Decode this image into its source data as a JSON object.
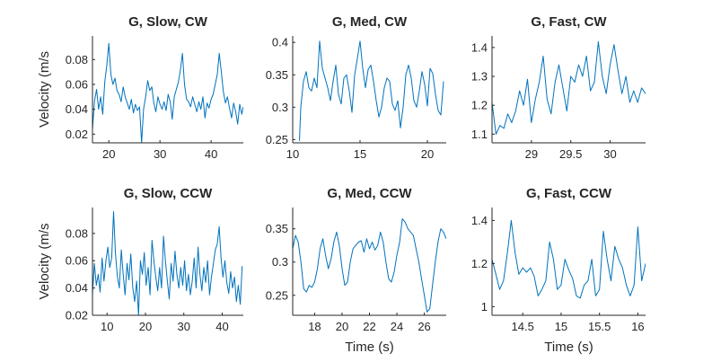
{
  "chart_data": [
    {
      "type": "line",
      "title": "G, Slow, CW",
      "xlabel": "",
      "ylabel": "Velocity (m/s",
      "xlim": [
        16.8,
        46.3
      ],
      "ylim": [
        0.013,
        0.099
      ],
      "xticks": [
        20,
        30,
        40
      ],
      "yticks": [
        0.02,
        0.04,
        0.06,
        0.08
      ],
      "x_tick_labels": [
        "20",
        "30",
        "40"
      ],
      "y_tick_labels": [
        "0.02",
        "0.04",
        "0.06",
        "0.08"
      ],
      "grid": false,
      "series": [
        {
          "color": "#0072BD",
          "x": [
            16.8,
            17.2,
            17.6,
            18.0,
            18.4,
            18.8,
            19.2,
            19.6,
            20.0,
            20.4,
            20.8,
            21.2,
            21.6,
            22.0,
            22.4,
            22.8,
            23.2,
            23.6,
            24.0,
            24.4,
            24.8,
            25.2,
            25.6,
            26.0,
            26.4,
            26.8,
            27.2,
            27.6,
            28.0,
            28.4,
            28.8,
            29.2,
            29.6,
            30.0,
            30.4,
            30.8,
            31.2,
            31.6,
            32.0,
            32.4,
            32.8,
            33.2,
            33.6,
            34.0,
            34.4,
            34.8,
            35.2,
            35.6,
            36.0,
            36.4,
            36.8,
            37.2,
            37.6,
            38.0,
            38.4,
            38.8,
            39.2,
            39.6,
            40.0,
            40.4,
            40.8,
            41.2,
            41.6,
            42.0,
            42.4,
            42.8,
            43.2,
            43.6,
            44.0,
            44.4,
            44.8,
            45.2,
            45.6,
            46.0,
            46.3
          ],
          "y": [
            0.024,
            0.047,
            0.056,
            0.04,
            0.05,
            0.036,
            0.062,
            0.075,
            0.093,
            0.068,
            0.06,
            0.065,
            0.055,
            0.052,
            0.046,
            0.058,
            0.05,
            0.045,
            0.04,
            0.048,
            0.037,
            0.044,
            0.039,
            0.042,
            0.013,
            0.04,
            0.05,
            0.063,
            0.055,
            0.058,
            0.045,
            0.038,
            0.05,
            0.044,
            0.04,
            0.046,
            0.039,
            0.052,
            0.046,
            0.032,
            0.05,
            0.056,
            0.062,
            0.072,
            0.085,
            0.06,
            0.048,
            0.046,
            0.042,
            0.05,
            0.044,
            0.038,
            0.046,
            0.04,
            0.05,
            0.033,
            0.045,
            0.041,
            0.048,
            0.052,
            0.06,
            0.068,
            0.085,
            0.07,
            0.054,
            0.045,
            0.05,
            0.041,
            0.033,
            0.045,
            0.038,
            0.028,
            0.044,
            0.036,
            0.042
          ]
        }
      ]
    },
    {
      "type": "line",
      "title": "G, Med, CW",
      "xlabel": "",
      "ylabel": "",
      "xlim": [
        10,
        21.4
      ],
      "ylim": [
        0.245,
        0.41
      ],
      "xticks": [
        10,
        15,
        20
      ],
      "yticks": [
        0.25,
        0.3,
        0.35,
        0.4
      ],
      "x_tick_labels": [
        "10",
        "15",
        "20"
      ],
      "y_tick_labels": [
        "0.25",
        "0.3",
        "0.35",
        "0.4"
      ],
      "grid": false,
      "series": [
        {
          "color": "#0072BD",
          "x": [
            10.5,
            10.6,
            10.8,
            11.0,
            11.2,
            11.4,
            11.6,
            11.8,
            12.0,
            12.2,
            12.4,
            12.6,
            12.8,
            13.0,
            13.2,
            13.4,
            13.6,
            13.8,
            14.0,
            14.2,
            14.4,
            14.6,
            14.8,
            15.0,
            15.2,
            15.4,
            15.6,
            15.8,
            16.0,
            16.2,
            16.4,
            16.6,
            16.8,
            17.0,
            17.2,
            17.4,
            17.6,
            17.8,
            18.0,
            18.2,
            18.4,
            18.6,
            18.8,
            19.0,
            19.2,
            19.4,
            19.6,
            19.8,
            20.0,
            20.2,
            20.4,
            20.6,
            20.8,
            21.0,
            21.2
          ],
          "y": [
            0.248,
            0.3,
            0.34,
            0.355,
            0.33,
            0.325,
            0.345,
            0.33,
            0.402,
            0.36,
            0.345,
            0.33,
            0.31,
            0.34,
            0.365,
            0.32,
            0.305,
            0.345,
            0.35,
            0.325,
            0.292,
            0.35,
            0.375,
            0.402,
            0.36,
            0.33,
            0.358,
            0.365,
            0.34,
            0.31,
            0.285,
            0.3,
            0.33,
            0.345,
            0.34,
            0.305,
            0.295,
            0.31,
            0.268,
            0.3,
            0.35,
            0.365,
            0.345,
            0.31,
            0.3,
            0.325,
            0.355,
            0.335,
            0.302,
            0.36,
            0.352,
            0.32,
            0.295,
            0.288,
            0.34
          ]
        }
      ]
    },
    {
      "type": "line",
      "title": "G, Fast, CW",
      "xlabel": "",
      "ylabel": "",
      "xlim": [
        28.5,
        30.45
      ],
      "ylim": [
        1.07,
        1.44
      ],
      "xticks": [
        29,
        29.5,
        30
      ],
      "yticks": [
        1.1,
        1.2,
        1.3,
        1.4
      ],
      "x_tick_labels": [
        "29",
        "29.5",
        "30"
      ],
      "y_tick_labels": [
        "1.1",
        "1.2",
        "1.3",
        "1.4"
      ],
      "grid": false,
      "series": [
        {
          "color": "#0072BD",
          "x": [
            28.5,
            28.55,
            28.6,
            28.65,
            28.7,
            28.75,
            28.8,
            28.85,
            28.9,
            28.95,
            29.0,
            29.05,
            29.1,
            29.15,
            29.2,
            29.25,
            29.3,
            29.35,
            29.4,
            29.45,
            29.5,
            29.55,
            29.6,
            29.65,
            29.7,
            29.75,
            29.8,
            29.85,
            29.9,
            29.95,
            30.0,
            30.05,
            30.1,
            30.15,
            30.2,
            30.25,
            30.3,
            30.35,
            30.4,
            30.45
          ],
          "y": [
            1.21,
            1.1,
            1.13,
            1.12,
            1.17,
            1.14,
            1.18,
            1.25,
            1.2,
            1.29,
            1.14,
            1.22,
            1.28,
            1.37,
            1.22,
            1.17,
            1.28,
            1.34,
            1.26,
            1.18,
            1.3,
            1.28,
            1.34,
            1.3,
            1.37,
            1.25,
            1.28,
            1.42,
            1.3,
            1.24,
            1.34,
            1.41,
            1.32,
            1.24,
            1.3,
            1.21,
            1.25,
            1.21,
            1.26,
            1.24
          ]
        }
      ]
    },
    {
      "type": "line",
      "title": "G, Slow, CCW",
      "xlabel": "",
      "ylabel": "Velocity (m/s",
      "xlim": [
        6.2,
        45.5
      ],
      "ylim": [
        0.02,
        0.099
      ],
      "xticks": [
        10,
        20,
        30,
        40
      ],
      "yticks": [
        0.02,
        0.04,
        0.06,
        0.08
      ],
      "x_tick_labels": [
        "10",
        "20",
        "30",
        "40"
      ],
      "y_tick_labels": [
        "0.02",
        "0.04",
        "0.06",
        "0.08"
      ],
      "grid": false,
      "series": [
        {
          "color": "#0072BD",
          "x": [
            6.2,
            6.7,
            7.2,
            7.7,
            8.2,
            8.7,
            9.2,
            9.7,
            10.2,
            10.7,
            11.2,
            11.7,
            12.2,
            12.7,
            13.2,
            13.7,
            14.2,
            14.7,
            15.2,
            15.7,
            16.2,
            16.7,
            17.2,
            17.7,
            18.2,
            18.7,
            19.2,
            19.7,
            20.2,
            20.7,
            21.2,
            21.7,
            22.2,
            22.7,
            23.2,
            23.7,
            24.2,
            24.7,
            25.2,
            25.7,
            26.2,
            26.7,
            27.2,
            27.7,
            28.2,
            28.7,
            29.2,
            29.7,
            30.2,
            30.7,
            31.2,
            31.7,
            32.2,
            32.7,
            33.2,
            33.7,
            34.2,
            34.7,
            35.2,
            35.7,
            36.2,
            36.7,
            37.2,
            37.7,
            38.2,
            38.7,
            39.2,
            39.7,
            40.2,
            40.7,
            41.2,
            41.7,
            42.2,
            42.7,
            43.2,
            43.7,
            44.2,
            44.7,
            45.2
          ],
          "y": [
            0.035,
            0.058,
            0.042,
            0.05,
            0.037,
            0.062,
            0.045,
            0.06,
            0.07,
            0.055,
            0.062,
            0.096,
            0.065,
            0.048,
            0.04,
            0.068,
            0.05,
            0.035,
            0.058,
            0.046,
            0.065,
            0.04,
            0.03,
            0.045,
            0.02,
            0.06,
            0.05,
            0.066,
            0.042,
            0.055,
            0.035,
            0.075,
            0.06,
            0.048,
            0.038,
            0.055,
            0.04,
            0.078,
            0.06,
            0.045,
            0.032,
            0.058,
            0.045,
            0.067,
            0.05,
            0.04,
            0.055,
            0.042,
            0.06,
            0.038,
            0.05,
            0.035,
            0.045,
            0.062,
            0.04,
            0.07,
            0.05,
            0.038,
            0.055,
            0.044,
            0.06,
            0.035,
            0.048,
            0.058,
            0.068,
            0.072,
            0.085,
            0.062,
            0.048,
            0.06,
            0.044,
            0.036,
            0.052,
            0.04,
            0.048,
            0.03,
            0.042,
            0.028,
            0.056
          ]
        }
      ]
    },
    {
      "type": "line",
      "title": "G, Med, CCW",
      "xlabel": "Time (s)",
      "ylabel": "",
      "xlim": [
        16.4,
        27.6
      ],
      "ylim": [
        0.22,
        0.382
      ],
      "xticks": [
        18,
        20,
        22,
        24,
        26
      ],
      "yticks": [
        0.25,
        0.3,
        0.35
      ],
      "x_tick_labels": [
        "18",
        "20",
        "22",
        "24",
        "26"
      ],
      "y_tick_labels": [
        "0.25",
        "0.3",
        "0.35"
      ],
      "grid": false,
      "series": [
        {
          "color": "#0072BD",
          "x": [
            16.4,
            16.6,
            16.8,
            17.0,
            17.2,
            17.4,
            17.6,
            17.8,
            18.0,
            18.2,
            18.4,
            18.6,
            18.8,
            19.0,
            19.2,
            19.4,
            19.6,
            19.8,
            20.0,
            20.2,
            20.4,
            20.6,
            20.8,
            21.0,
            21.2,
            21.4,
            21.6,
            21.8,
            22.0,
            22.2,
            22.4,
            22.6,
            22.8,
            23.0,
            23.2,
            23.4,
            23.6,
            23.8,
            24.0,
            24.2,
            24.4,
            24.6,
            24.8,
            25.0,
            25.2,
            25.4,
            25.6,
            25.8,
            26.0,
            26.2,
            26.4,
            26.6,
            26.8,
            27.0,
            27.2,
            27.4,
            27.6
          ],
          "y": [
            0.32,
            0.34,
            0.33,
            0.3,
            0.26,
            0.255,
            0.265,
            0.262,
            0.27,
            0.29,
            0.32,
            0.335,
            0.31,
            0.29,
            0.305,
            0.33,
            0.345,
            0.325,
            0.29,
            0.265,
            0.27,
            0.3,
            0.32,
            0.325,
            0.33,
            0.332,
            0.315,
            0.335,
            0.32,
            0.33,
            0.318,
            0.325,
            0.345,
            0.33,
            0.3,
            0.275,
            0.27,
            0.285,
            0.31,
            0.33,
            0.365,
            0.36,
            0.35,
            0.345,
            0.34,
            0.32,
            0.3,
            0.275,
            0.25,
            0.225,
            0.23,
            0.265,
            0.3,
            0.33,
            0.35,
            0.345,
            0.335
          ]
        }
      ]
    },
    {
      "type": "line",
      "title": "G, Fast, CCW",
      "xlabel": "Time (s)",
      "ylabel": "",
      "xlim": [
        14.1,
        16.1
      ],
      "ylim": [
        0.96,
        1.46
      ],
      "xticks": [
        14.5,
        15,
        15.5,
        16
      ],
      "yticks": [
        1,
        1.2,
        1.4
      ],
      "x_tick_labels": [
        "14.5",
        "15",
        "15.5",
        "16"
      ],
      "y_tick_labels": [
        "1",
        "1.2",
        "1.4"
      ],
      "grid": false,
      "series": [
        {
          "color": "#0072BD",
          "x": [
            14.1,
            14.15,
            14.2,
            14.25,
            14.3,
            14.35,
            14.4,
            14.45,
            14.5,
            14.55,
            14.6,
            14.65,
            14.7,
            14.75,
            14.8,
            14.85,
            14.9,
            14.95,
            15.0,
            15.05,
            15.1,
            15.15,
            15.2,
            15.25,
            15.3,
            15.35,
            15.4,
            15.45,
            15.5,
            15.55,
            15.6,
            15.65,
            15.7,
            15.75,
            15.8,
            15.85,
            15.9,
            15.95,
            16.0,
            16.05,
            16.1
          ],
          "y": [
            1.22,
            1.15,
            1.08,
            1.12,
            1.25,
            1.4,
            1.25,
            1.15,
            1.18,
            1.16,
            1.18,
            1.14,
            1.05,
            1.08,
            1.12,
            1.3,
            1.22,
            1.08,
            1.1,
            1.22,
            1.17,
            1.13,
            1.05,
            1.04,
            1.1,
            1.12,
            1.22,
            1.05,
            1.08,
            1.35,
            1.22,
            1.12,
            1.28,
            1.22,
            1.18,
            1.1,
            1.05,
            1.1,
            1.37,
            1.12,
            1.2
          ]
        }
      ]
    }
  ]
}
